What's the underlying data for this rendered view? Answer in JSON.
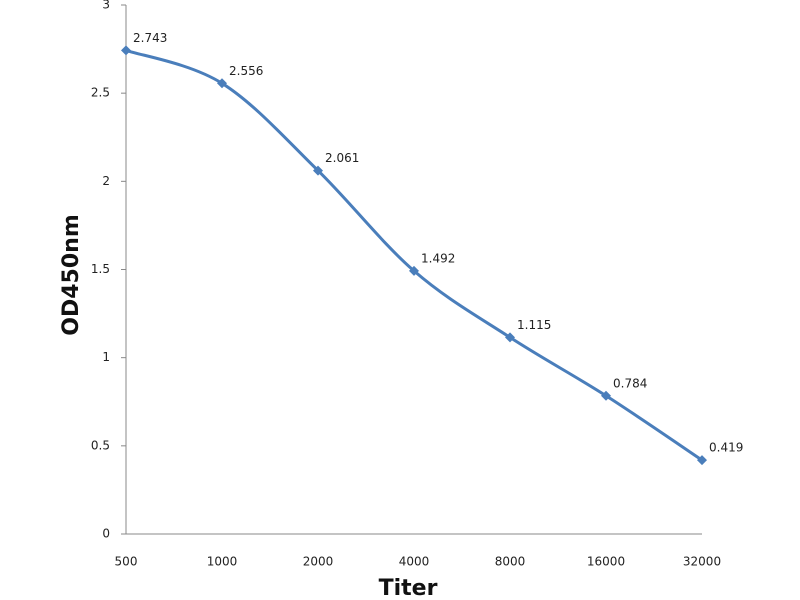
{
  "chart_data": {
    "type": "line",
    "x_label": "Titer",
    "y_label": "OD450nm",
    "categories": [
      "500",
      "1000",
      "2000",
      "4000",
      "8000",
      "16000",
      "32000"
    ],
    "values": [
      2.743,
      2.556,
      2.061,
      1.492,
      1.115,
      0.784,
      0.419
    ],
    "color": "#4a7ebb",
    "ylim": [
      0,
      3
    ],
    "yticks": [
      0,
      0.5,
      1,
      1.5,
      2,
      2.5,
      3
    ]
  }
}
